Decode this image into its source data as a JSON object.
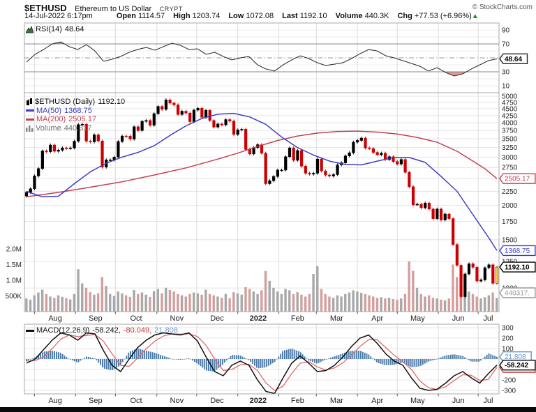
{
  "header": {
    "symbol": "$ETHUSD",
    "name": "Ethereum to US Dollar",
    "exchange": "CRYPT",
    "copyright": "© StockCharts.com",
    "datetime": "14-Jul-2022 6:17pm",
    "quote": [
      {
        "label": "Open",
        "value": "1114.57"
      },
      {
        "label": "High",
        "value": "1203.74"
      },
      {
        "label": "Low",
        "value": "1072.08"
      },
      {
        "label": "Last",
        "value": "1192.10"
      },
      {
        "label": "Volume",
        "value": "440.3K"
      },
      {
        "label": "Chg",
        "value": "+77.53 (+6.96%)",
        "arrow": "▲",
        "arrow_color": "#009900"
      }
    ]
  },
  "colors": {
    "up": "#000000",
    "down": "#cc0000",
    "vol_up": "#a8a8a8",
    "vol_down": "#d49e9e",
    "hist": "#4a7aa8",
    "ma50": "#3d3dc4",
    "ma200": "#c4404f",
    "last_candle": "#ffd24a",
    "rsi_over_fill": "#2e7d32",
    "rsi_under_fill": "#b03a3a",
    "grid": "#e4e4e4"
  },
  "chart_data": [
    {
      "panel": "rsi",
      "type": "line",
      "legend": {
        "label": "RSI(14)",
        "value": "48.64"
      },
      "ylim": [
        0,
        100
      ],
      "yticks": [
        90,
        70,
        30,
        10
      ],
      "levels": {
        "overbought": 70,
        "midline": 50,
        "oversold": 30
      },
      "badge": {
        "text": "48.64",
        "value": 48.64
      },
      "series": [
        44,
        55,
        62,
        70,
        73,
        66,
        62,
        69,
        60,
        45,
        48,
        52,
        58,
        62,
        65,
        61,
        66,
        71,
        68,
        62,
        63,
        55,
        58,
        52,
        47,
        50,
        52,
        40,
        34,
        31,
        40,
        47,
        53,
        49,
        43,
        39,
        41,
        43,
        49,
        56,
        62,
        60,
        53,
        50,
        46,
        42,
        38,
        31,
        36,
        29,
        24,
        27,
        34,
        40,
        46,
        48.6
      ]
    },
    {
      "panel": "price",
      "type": "candlestick",
      "scale": "log",
      "legend_title": {
        "label": "$ETHUSD (Daily)",
        "value": "1192.10"
      },
      "legend_items": [
        {
          "label": "MA(50)",
          "value": "1368.75",
          "color": "#3d3dc4"
        },
        {
          "label": "MA(200)",
          "value": "2505.17",
          "color": "#c4404f"
        },
        {
          "label": "Volume",
          "value": "440,317",
          "color": "#707070"
        }
      ],
      "ylim": [
        820,
        5150
      ],
      "yticks": [
        5000,
        4750,
        4500,
        4250,
        4000,
        3750,
        3500,
        3250,
        3000,
        2750,
        2250,
        2000,
        1750,
        1500,
        1250,
        1000
      ],
      "grid_extra": [
        2500
      ],
      "badges": [
        {
          "text": "2505.17",
          "value": 2505.17,
          "color": "#c4404f",
          "bold": false
        },
        {
          "text": "1368.75",
          "value": 1368.75,
          "color": "#3d3dc4",
          "bold": false
        },
        {
          "text": "1192.10",
          "value": 1192.1,
          "color": "#000000",
          "bold": true
        }
      ],
      "volume_badge": {
        "text": "440317.",
        "color": "#999999"
      },
      "volume_ticks": [
        {
          "label": "2.0M",
          "value": 2000
        },
        {
          "label": "1.5M",
          "value": 1500
        },
        {
          "label": "1.0M",
          "value": 1000
        },
        {
          "label": "500K",
          "value": 500
        }
      ],
      "months": [
        "Aug",
        "Sep",
        "Oct",
        "Nov",
        "Dec",
        "2022",
        "Feb",
        "Mar",
        "Apr",
        "May",
        "Jun",
        "Jul"
      ],
      "month_grid_idx": [
        2,
        12.3,
        22.3,
        32.7,
        42.7,
        53,
        63.3,
        72.7,
        83,
        93,
        103.3,
        113.3
      ],
      "month_label_idx": [
        7.2,
        17.3,
        27.5,
        37.7,
        47.8,
        58.1,
        68,
        77.8,
        88,
        98.1,
        108.3,
        115.8
      ],
      "closes": [
        2230,
        2300,
        2560,
        2725,
        3160,
        3140,
        3320,
        3150,
        3180,
        3240,
        3230,
        3240,
        3430,
        3940,
        3950,
        3430,
        3410,
        3615,
        3435,
        2760,
        2930,
        2930,
        3000,
        3420,
        3580,
        3575,
        3490,
        3870,
        3750,
        4050,
        4080,
        3920,
        4320,
        4590,
        4480,
        4850,
        4720,
        4650,
        4290,
        4410,
        4340,
        4040,
        4450,
        4520,
        4190,
        4440,
        4080,
        3860,
        3960,
        3930,
        4110,
        4060,
        3630,
        3770,
        3790,
        3200,
        3080,
        3250,
        3330,
        3100,
        2400,
        2460,
        2550,
        2690,
        2690,
        3010,
        3240,
        2920,
        3170,
        2780,
        2620,
        2600,
        2620,
        2950,
        2670,
        2580,
        2560,
        2590,
        2810,
        2860,
        3030,
        3110,
        3400,
        3450,
        3520,
        3240,
        3220,
        3120,
        3060,
        3100,
        2940,
        3010,
        2890,
        2830,
        2940,
        2640,
        2340,
        2010,
        2020,
        1960,
        2040,
        1940,
        1790,
        1940,
        1770,
        1860,
        1790,
        1440,
        1210,
        930,
        1125,
        1225,
        1190,
        1060,
        1070,
        1185,
        1215,
        1040,
        1192
      ],
      "volume_k": [
        420,
        380,
        520,
        610,
        700,
        560,
        480,
        440,
        520,
        470,
        430,
        390,
        560,
        1350,
        900,
        760,
        620,
        540,
        580,
        1100,
        820,
        560,
        500,
        640,
        580,
        520,
        470,
        690,
        560,
        610,
        540,
        470,
        650,
        720,
        580,
        760,
        690,
        640,
        560,
        520,
        480,
        560,
        610,
        580,
        540,
        700,
        560,
        520,
        480,
        440,
        560,
        430,
        620,
        580,
        540,
        780,
        720,
        640,
        560,
        680,
        1300,
        980,
        760,
        640,
        560,
        720,
        680,
        560,
        620,
        540,
        480,
        560,
        1200,
        1450,
        720,
        560,
        480,
        440,
        520,
        480,
        560,
        610,
        680,
        640,
        600,
        560,
        520,
        480,
        440,
        460,
        420,
        440,
        400,
        380,
        420,
        560,
        1600,
        1300,
        760,
        560,
        480,
        520,
        440,
        420,
        380,
        360,
        420,
        1500,
        1100,
        1200,
        820,
        640,
        560,
        480,
        420,
        460,
        520,
        610,
        440
      ],
      "ma50": [
        [
          0,
          2250
        ],
        [
          4,
          2150
        ],
        [
          8,
          2160
        ],
        [
          12,
          2400
        ],
        [
          16,
          2650
        ],
        [
          20,
          2850
        ],
        [
          24,
          3000
        ],
        [
          28,
          3120
        ],
        [
          32,
          3300
        ],
        [
          36,
          3600
        ],
        [
          40,
          3900
        ],
        [
          44,
          4150
        ],
        [
          48,
          4300
        ],
        [
          52,
          4330
        ],
        [
          56,
          4200
        ],
        [
          60,
          3950
        ],
        [
          64,
          3550
        ],
        [
          68,
          3250
        ],
        [
          72,
          3050
        ],
        [
          76,
          2900
        ],
        [
          80,
          2820
        ],
        [
          84,
          2810
        ],
        [
          88,
          2900
        ],
        [
          92,
          2990
        ],
        [
          96,
          2990
        ],
        [
          100,
          2870
        ],
        [
          104,
          2550
        ],
        [
          108,
          2250
        ],
        [
          112,
          1850
        ],
        [
          116,
          1520
        ],
        [
          118,
          1369
        ]
      ],
      "ma200": [
        [
          0,
          2150
        ],
        [
          8,
          2230
        ],
        [
          16,
          2330
        ],
        [
          24,
          2440
        ],
        [
          32,
          2580
        ],
        [
          40,
          2740
        ],
        [
          48,
          2950
        ],
        [
          53,
          3100
        ],
        [
          58,
          3280
        ],
        [
          63,
          3450
        ],
        [
          68,
          3580
        ],
        [
          73,
          3670
        ],
        [
          78,
          3720
        ],
        [
          83,
          3730
        ],
        [
          88,
          3700
        ],
        [
          93,
          3640
        ],
        [
          98,
          3540
        ],
        [
          103,
          3400
        ],
        [
          108,
          3150
        ],
        [
          112,
          2900
        ],
        [
          115,
          2720
        ],
        [
          118,
          2505
        ]
      ]
    },
    {
      "panel": "macd",
      "type": "line+histogram",
      "legend": {
        "label": "MACD(12,26,9)",
        "v1": "-58.242,",
        "v2": "-80.049,",
        "v3": "21.808"
      },
      "ylim": [
        -330,
        320
      ],
      "yticks": [
        300,
        200,
        100,
        -200,
        -300
      ],
      "badges": [
        {
          "text": "21.808",
          "value": 21.808,
          "color": "#6699cc",
          "bold": false
        },
        {
          "text": "-80.049",
          "value": -80.049,
          "color": "#cc3333",
          "bold": false
        },
        {
          "text": "-58.242",
          "value": -58.242,
          "color": "#000000",
          "bold": true
        }
      ],
      "macd": [
        -40,
        0,
        90,
        180,
        250,
        230,
        180,
        250,
        240,
        80,
        -60,
        -120,
        0,
        110,
        180,
        230,
        250,
        240,
        230,
        250,
        170,
        20,
        -120,
        -160,
        -60,
        -20,
        -60,
        -200,
        -310,
        -330,
        -180,
        -40,
        30,
        -40,
        -120,
        -110,
        -60,
        20,
        120,
        200,
        230,
        150,
        50,
        -20,
        -60,
        -180,
        -280,
        -300,
        -290,
        -230,
        -160,
        -120,
        -180,
        -230,
        -140,
        -58
      ],
      "signal": [
        -20,
        -15,
        20,
        100,
        190,
        230,
        215,
        225,
        235,
        170,
        50,
        -60,
        -70,
        10,
        100,
        170,
        220,
        240,
        238,
        242,
        215,
        130,
        0,
        -110,
        -100,
        -55,
        -50,
        -110,
        -230,
        -300,
        -260,
        -140,
        -40,
        -25,
        -75,
        -105,
        -85,
        -35,
        40,
        120,
        185,
        185,
        110,
        35,
        -25,
        -100,
        -210,
        -275,
        -290,
        -265,
        -205,
        -150,
        -155,
        -205,
        -195,
        -80
      ]
    }
  ]
}
